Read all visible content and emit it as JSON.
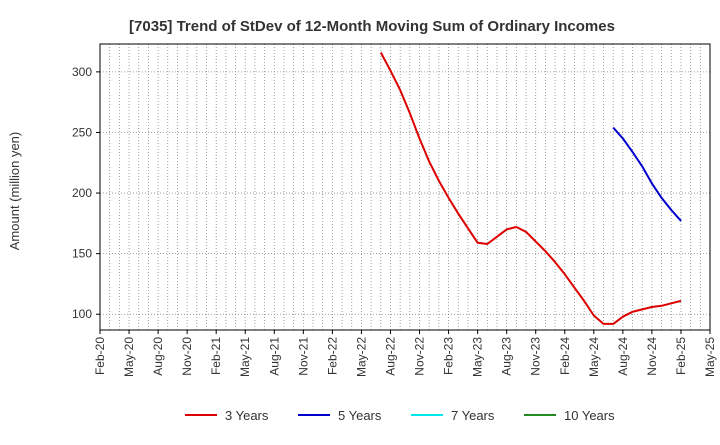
{
  "chart_data": {
    "type": "line",
    "title": "[7035]  Trend of StDev of 12-Month Moving Sum of Ordinary Incomes",
    "xlabel": "",
    "ylabel": "Amount (million yen)",
    "x_ticks": [
      "Feb-20",
      "May-20",
      "Aug-20",
      "Nov-20",
      "Feb-21",
      "May-21",
      "Aug-21",
      "Nov-21",
      "Feb-22",
      "May-22",
      "Aug-22",
      "Nov-22",
      "Feb-23",
      "May-23",
      "Aug-23",
      "Nov-23",
      "Feb-24",
      "May-24",
      "Aug-24",
      "Nov-24",
      "Feb-25",
      "May-25"
    ],
    "y_ticks": [
      100,
      150,
      200,
      250,
      300
    ],
    "ylim": [
      87,
      323
    ],
    "grid": true,
    "legend_position": "bottom",
    "series": [
      {
        "name": "3 Years",
        "color": "#dd0000",
        "x": [
          "Jul-22",
          "Aug-22",
          "Sep-22",
          "Oct-22",
          "Nov-22",
          "Dec-22",
          "Jan-23",
          "Feb-23",
          "Mar-23",
          "Apr-23",
          "May-23",
          "Jun-23",
          "Jul-23",
          "Aug-23",
          "Sep-23",
          "Oct-23",
          "Nov-23",
          "Dec-23",
          "Jan-24",
          "Feb-24",
          "Mar-24",
          "Apr-24",
          "May-24",
          "Jun-24",
          "Jul-24",
          "Aug-24",
          "Sep-24",
          "Oct-24",
          "Nov-24",
          "Dec-24",
          "Jan-25",
          "Feb-25"
        ],
        "values": [
          316,
          301,
          285,
          266,
          245,
          226,
          210,
          196,
          183,
          171,
          159,
          158,
          164,
          170,
          172,
          168,
          160,
          152,
          143,
          133,
          122,
          111,
          99,
          92,
          92,
          98,
          102,
          104,
          106,
          107,
          109,
          111
        ]
      },
      {
        "name": "5 Years",
        "color": "#0000cc",
        "x": [
          "Jul-24",
          "Aug-24",
          "Sep-24",
          "Oct-24",
          "Nov-24",
          "Dec-24",
          "Jan-25",
          "Feb-25"
        ],
        "values": [
          254,
          245,
          234,
          222,
          208,
          196,
          186,
          177
        ]
      },
      {
        "name": "7 Years",
        "color": "#00e5ee",
        "x": [],
        "values": []
      },
      {
        "name": "10 Years",
        "color": "#228b22",
        "x": [],
        "values": []
      }
    ]
  }
}
